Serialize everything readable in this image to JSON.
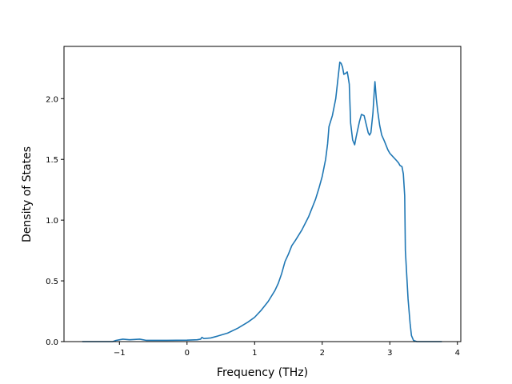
{
  "chart_data": {
    "type": "line",
    "title": "",
    "xlabel": "Frequency (THz)",
    "ylabel": "Density of States",
    "xlim": [
      -1.82,
      4.05
    ],
    "ylim": [
      0.0,
      2.43
    ],
    "xticks": [
      -1,
      0,
      1,
      2,
      3,
      4
    ],
    "xtick_labels": [
      "−1",
      "0",
      "1",
      "2",
      "3",
      "4"
    ],
    "yticks": [
      0.0,
      0.5,
      1.0,
      1.5,
      2.0
    ],
    "ytick_labels": [
      "0.0",
      "0.5",
      "1.0",
      "1.5",
      "2.0"
    ],
    "grid": false,
    "series": [
      {
        "color": "#1f77b4",
        "points": [
          [
            -1.55,
            0.0
          ],
          [
            -1.1,
            0.0
          ],
          [
            -1.05,
            0.01
          ],
          [
            -0.95,
            0.02
          ],
          [
            -0.85,
            0.015
          ],
          [
            -0.7,
            0.02
          ],
          [
            -0.6,
            0.01
          ],
          [
            -0.3,
            0.01
          ],
          [
            0.0,
            0.012
          ],
          [
            0.15,
            0.015
          ],
          [
            0.2,
            0.02
          ],
          [
            0.22,
            0.035
          ],
          [
            0.25,
            0.025
          ],
          [
            0.35,
            0.03
          ],
          [
            0.45,
            0.045
          ],
          [
            0.6,
            0.07
          ],
          [
            0.75,
            0.11
          ],
          [
            0.9,
            0.16
          ],
          [
            1.0,
            0.2
          ],
          [
            1.1,
            0.26
          ],
          [
            1.2,
            0.33
          ],
          [
            1.3,
            0.42
          ],
          [
            1.35,
            0.48
          ],
          [
            1.4,
            0.56
          ],
          [
            1.45,
            0.66
          ],
          [
            1.5,
            0.72
          ],
          [
            1.55,
            0.79
          ],
          [
            1.6,
            0.83
          ],
          [
            1.7,
            0.92
          ],
          [
            1.8,
            1.03
          ],
          [
            1.9,
            1.17
          ],
          [
            1.95,
            1.26
          ],
          [
            2.0,
            1.36
          ],
          [
            2.05,
            1.5
          ],
          [
            2.08,
            1.63
          ],
          [
            2.1,
            1.77
          ],
          [
            2.15,
            1.86
          ],
          [
            2.2,
            2.0
          ],
          [
            2.23,
            2.15
          ],
          [
            2.26,
            2.3
          ],
          [
            2.28,
            2.29
          ],
          [
            2.3,
            2.26
          ],
          [
            2.32,
            2.2
          ],
          [
            2.35,
            2.21
          ],
          [
            2.37,
            2.22
          ],
          [
            2.38,
            2.19
          ],
          [
            2.4,
            2.12
          ],
          [
            2.42,
            1.8
          ],
          [
            2.45,
            1.66
          ],
          [
            2.48,
            1.62
          ],
          [
            2.5,
            1.68
          ],
          [
            2.55,
            1.81
          ],
          [
            2.58,
            1.87
          ],
          [
            2.62,
            1.86
          ],
          [
            2.65,
            1.79
          ],
          [
            2.68,
            1.72
          ],
          [
            2.7,
            1.7
          ],
          [
            2.72,
            1.72
          ],
          [
            2.75,
            1.88
          ],
          [
            2.77,
            2.06
          ],
          [
            2.78,
            2.14
          ],
          [
            2.8,
            2.0
          ],
          [
            2.82,
            1.9
          ],
          [
            2.85,
            1.78
          ],
          [
            2.88,
            1.7
          ],
          [
            2.92,
            1.65
          ],
          [
            2.97,
            1.58
          ],
          [
            3.0,
            1.55
          ],
          [
            3.05,
            1.52
          ],
          [
            3.1,
            1.49
          ],
          [
            3.13,
            1.47
          ],
          [
            3.15,
            1.45
          ],
          [
            3.18,
            1.44
          ],
          [
            3.2,
            1.38
          ],
          [
            3.22,
            1.2
          ],
          [
            3.23,
            0.75
          ],
          [
            3.25,
            0.55
          ],
          [
            3.27,
            0.35
          ],
          [
            3.3,
            0.15
          ],
          [
            3.32,
            0.05
          ],
          [
            3.35,
            0.01
          ],
          [
            3.4,
            0.0
          ],
          [
            3.77,
            0.0
          ]
        ]
      }
    ]
  }
}
